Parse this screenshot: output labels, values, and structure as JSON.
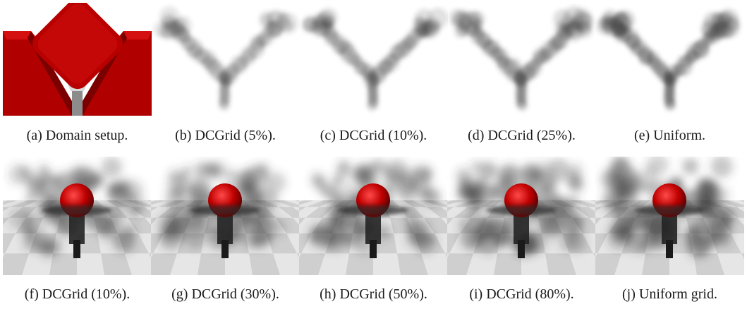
{
  "figure": {
    "row1": [
      {
        "id": "a",
        "caption": "(a) Domain setup."
      },
      {
        "id": "b",
        "caption": "(b) DCGrid (5%)."
      },
      {
        "id": "c",
        "caption": "(c) DCGrid (10%)."
      },
      {
        "id": "d",
        "caption": "(d) DCGrid (25%)."
      },
      {
        "id": "e",
        "caption": "(e) Uniform."
      }
    ],
    "row2": [
      {
        "id": "f",
        "caption": "(f) DCGrid (10%)."
      },
      {
        "id": "g",
        "caption": "(g) DCGrid (30%)."
      },
      {
        "id": "h",
        "caption": "(h) DCGrid (50%)."
      },
      {
        "id": "i",
        "caption": "(i) DCGrid (80%)."
      },
      {
        "id": "j",
        "caption": "(j) Uniform grid."
      }
    ]
  },
  "colors": {
    "obstacle_red": "#b00000",
    "smoke_gray": "#3a3a3a",
    "floor_light": "#e6e6e6",
    "floor_dark": "#cfcfcf",
    "sky": "#ffffff"
  },
  "smoke_density": {
    "b": 0.55,
    "c": 0.65,
    "d": 0.75,
    "e": 0.85,
    "f": 0.55,
    "g": 0.65,
    "h": 0.75,
    "i": 0.85,
    "j": 0.95
  }
}
